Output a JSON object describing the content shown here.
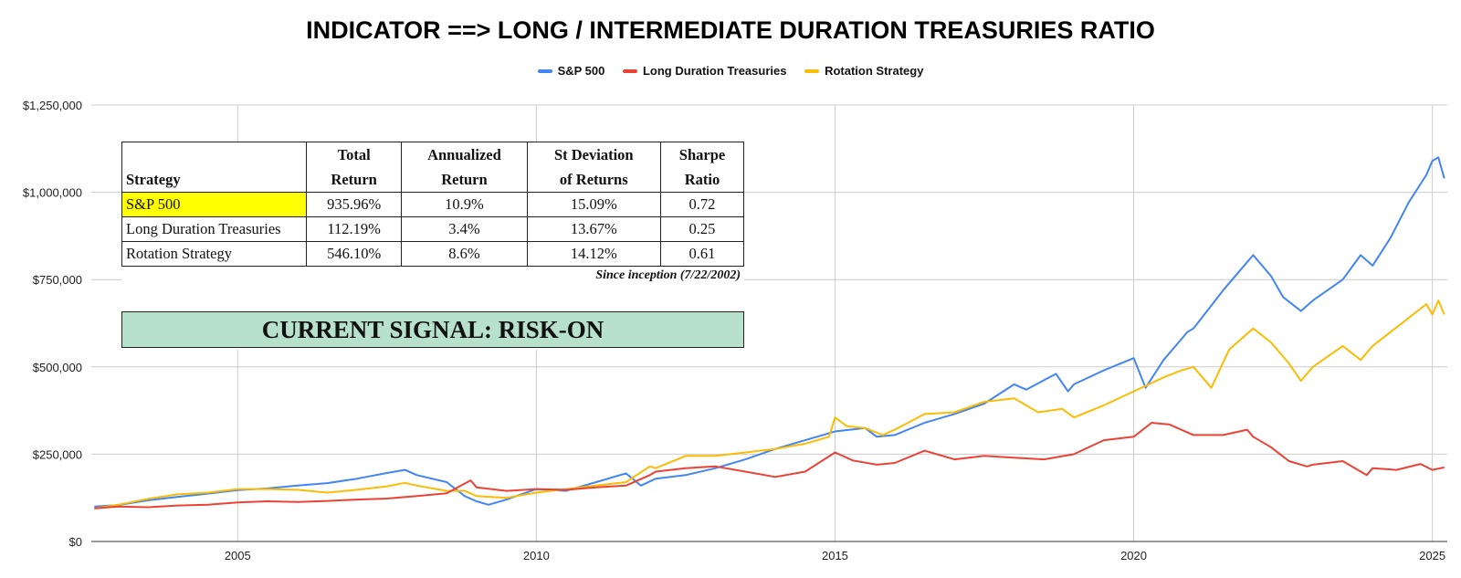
{
  "chart_data": {
    "type": "line",
    "title": "INDICATOR ==> LONG / INTERMEDIATE DURATION TREASURIES RATIO",
    "xlabel": "",
    "ylabel": "",
    "x_ticks": [
      "2005",
      "2010",
      "2015",
      "2020",
      "2025"
    ],
    "y_ticks": [
      "$0",
      "$250,000",
      "$500,000",
      "$750,000",
      "$1,000,000",
      "$1,250,000"
    ],
    "ylim": [
      0,
      1250000
    ],
    "xlim": [
      2002.55,
      2025.25
    ],
    "grid": true,
    "legend_position": "top",
    "series": [
      {
        "name": "S&P 500",
        "color": "#4285f4",
        "points": [
          [
            2002.6,
            100000
          ],
          [
            2003.0,
            104000
          ],
          [
            2003.5,
            118000
          ],
          [
            2004.0,
            128000
          ],
          [
            2004.5,
            137000
          ],
          [
            2005.0,
            147000
          ],
          [
            2005.5,
            152000
          ],
          [
            2006.0,
            160000
          ],
          [
            2006.5,
            167000
          ],
          [
            2007.0,
            180000
          ],
          [
            2007.5,
            196000
          ],
          [
            2007.8,
            205000
          ],
          [
            2008.0,
            190000
          ],
          [
            2008.5,
            170000
          ],
          [
            2008.8,
            130000
          ],
          [
            2009.0,
            115000
          ],
          [
            2009.2,
            105000
          ],
          [
            2009.5,
            120000
          ],
          [
            2010.0,
            150000
          ],
          [
            2010.5,
            145000
          ],
          [
            2011.0,
            170000
          ],
          [
            2011.5,
            195000
          ],
          [
            2011.75,
            160000
          ],
          [
            2012.0,
            180000
          ],
          [
            2012.5,
            190000
          ],
          [
            2013.0,
            210000
          ],
          [
            2013.5,
            235000
          ],
          [
            2014.0,
            265000
          ],
          [
            2014.5,
            290000
          ],
          [
            2015.0,
            315000
          ],
          [
            2015.5,
            325000
          ],
          [
            2015.7,
            300000
          ],
          [
            2016.0,
            305000
          ],
          [
            2016.5,
            340000
          ],
          [
            2017.0,
            365000
          ],
          [
            2017.5,
            395000
          ],
          [
            2018.0,
            450000
          ],
          [
            2018.2,
            435000
          ],
          [
            2018.7,
            480000
          ],
          [
            2018.9,
            430000
          ],
          [
            2019.0,
            450000
          ],
          [
            2019.5,
            490000
          ],
          [
            2020.0,
            525000
          ],
          [
            2020.2,
            440000
          ],
          [
            2020.5,
            520000
          ],
          [
            2020.9,
            600000
          ],
          [
            2021.0,
            610000
          ],
          [
            2021.5,
            720000
          ],
          [
            2021.8,
            780000
          ],
          [
            2022.0,
            820000
          ],
          [
            2022.3,
            760000
          ],
          [
            2022.5,
            700000
          ],
          [
            2022.8,
            660000
          ],
          [
            2023.0,
            690000
          ],
          [
            2023.5,
            750000
          ],
          [
            2023.8,
            820000
          ],
          [
            2024.0,
            790000
          ],
          [
            2024.3,
            870000
          ],
          [
            2024.6,
            970000
          ],
          [
            2024.9,
            1050000
          ],
          [
            2025.0,
            1090000
          ],
          [
            2025.1,
            1100000
          ],
          [
            2025.2,
            1040000
          ]
        ]
      },
      {
        "name": "Long Duration Treasuries",
        "color": "#ea4335",
        "points": [
          [
            2002.6,
            95000
          ],
          [
            2003.0,
            100000
          ],
          [
            2003.5,
            98000
          ],
          [
            2004.0,
            103000
          ],
          [
            2004.5,
            105000
          ],
          [
            2005.0,
            112000
          ],
          [
            2005.5,
            115000
          ],
          [
            2006.0,
            113000
          ],
          [
            2006.5,
            116000
          ],
          [
            2007.0,
            120000
          ],
          [
            2007.5,
            123000
          ],
          [
            2008.0,
            130000
          ],
          [
            2008.5,
            138000
          ],
          [
            2008.9,
            175000
          ],
          [
            2009.0,
            155000
          ],
          [
            2009.5,
            145000
          ],
          [
            2010.0,
            150000
          ],
          [
            2010.5,
            148000
          ],
          [
            2011.0,
            155000
          ],
          [
            2011.5,
            160000
          ],
          [
            2011.9,
            190000
          ],
          [
            2012.0,
            200000
          ],
          [
            2012.5,
            210000
          ],
          [
            2013.0,
            215000
          ],
          [
            2013.5,
            200000
          ],
          [
            2014.0,
            185000
          ],
          [
            2014.5,
            200000
          ],
          [
            2015.0,
            255000
          ],
          [
            2015.3,
            232000
          ],
          [
            2015.7,
            220000
          ],
          [
            2016.0,
            225000
          ],
          [
            2016.5,
            260000
          ],
          [
            2017.0,
            235000
          ],
          [
            2017.5,
            245000
          ],
          [
            2018.0,
            240000
          ],
          [
            2018.5,
            235000
          ],
          [
            2019.0,
            250000
          ],
          [
            2019.5,
            290000
          ],
          [
            2020.0,
            300000
          ],
          [
            2020.3,
            340000
          ],
          [
            2020.6,
            335000
          ],
          [
            2021.0,
            305000
          ],
          [
            2021.5,
            305000
          ],
          [
            2021.9,
            320000
          ],
          [
            2022.0,
            300000
          ],
          [
            2022.3,
            270000
          ],
          [
            2022.6,
            230000
          ],
          [
            2022.9,
            215000
          ],
          [
            2023.0,
            220000
          ],
          [
            2023.5,
            230000
          ],
          [
            2023.9,
            190000
          ],
          [
            2024.0,
            210000
          ],
          [
            2024.4,
            205000
          ],
          [
            2024.8,
            222000
          ],
          [
            2025.0,
            205000
          ],
          [
            2025.2,
            212000
          ]
        ]
      },
      {
        "name": "Rotation Strategy",
        "color": "#fbbc04",
        "points": [
          [
            2002.6,
            95000
          ],
          [
            2003.0,
            105000
          ],
          [
            2003.5,
            122000
          ],
          [
            2004.0,
            135000
          ],
          [
            2004.5,
            140000
          ],
          [
            2005.0,
            150000
          ],
          [
            2005.5,
            150000
          ],
          [
            2006.0,
            148000
          ],
          [
            2006.5,
            140000
          ],
          [
            2007.0,
            148000
          ],
          [
            2007.5,
            158000
          ],
          [
            2007.8,
            168000
          ],
          [
            2008.0,
            160000
          ],
          [
            2008.5,
            145000
          ],
          [
            2008.8,
            145000
          ],
          [
            2009.0,
            130000
          ],
          [
            2009.5,
            125000
          ],
          [
            2010.0,
            140000
          ],
          [
            2010.5,
            150000
          ],
          [
            2011.0,
            160000
          ],
          [
            2011.5,
            170000
          ],
          [
            2011.9,
            215000
          ],
          [
            2012.0,
            210000
          ],
          [
            2012.5,
            245000
          ],
          [
            2013.0,
            245000
          ],
          [
            2013.5,
            255000
          ],
          [
            2014.0,
            265000
          ],
          [
            2014.5,
            280000
          ],
          [
            2014.9,
            300000
          ],
          [
            2015.0,
            355000
          ],
          [
            2015.2,
            330000
          ],
          [
            2015.5,
            325000
          ],
          [
            2015.8,
            305000
          ],
          [
            2016.0,
            320000
          ],
          [
            2016.5,
            365000
          ],
          [
            2017.0,
            370000
          ],
          [
            2017.5,
            400000
          ],
          [
            2018.0,
            410000
          ],
          [
            2018.4,
            370000
          ],
          [
            2018.8,
            380000
          ],
          [
            2019.0,
            355000
          ],
          [
            2019.5,
            390000
          ],
          [
            2020.0,
            430000
          ],
          [
            2020.5,
            470000
          ],
          [
            2020.8,
            490000
          ],
          [
            2021.0,
            500000
          ],
          [
            2021.3,
            440000
          ],
          [
            2021.6,
            550000
          ],
          [
            2022.0,
            610000
          ],
          [
            2022.3,
            570000
          ],
          [
            2022.6,
            510000
          ],
          [
            2022.8,
            460000
          ],
          [
            2023.0,
            500000
          ],
          [
            2023.5,
            560000
          ],
          [
            2023.8,
            520000
          ],
          [
            2024.0,
            560000
          ],
          [
            2024.3,
            600000
          ],
          [
            2024.6,
            640000
          ],
          [
            2024.9,
            680000
          ],
          [
            2025.0,
            650000
          ],
          [
            2025.1,
            690000
          ],
          [
            2025.2,
            650000
          ]
        ]
      }
    ]
  },
  "stats_table": {
    "headers": [
      {
        "l1": "",
        "l2": "Strategy"
      },
      {
        "l1": "Total",
        "l2": "Return"
      },
      {
        "l1": "Annualized",
        "l2": "Return"
      },
      {
        "l1": "St Deviation",
        "l2": "of Returns"
      },
      {
        "l1": "Sharpe",
        "l2": "Ratio"
      }
    ],
    "rows": [
      [
        "S&P 500",
        "935.96%",
        "10.9%",
        "15.09%",
        "0.72"
      ],
      [
        "Long Duration Treasuries",
        "112.19%",
        "3.4%",
        "13.67%",
        "0.25"
      ],
      [
        "Rotation Strategy",
        "546.10%",
        "8.6%",
        "14.12%",
        "0.61"
      ]
    ],
    "highlight_color": "#ffff00"
  },
  "since_note": "Since inception (7/22/2002)",
  "signal": {
    "text": "CURRENT SIGNAL: RISK-ON",
    "background": "#b7e1cd"
  }
}
